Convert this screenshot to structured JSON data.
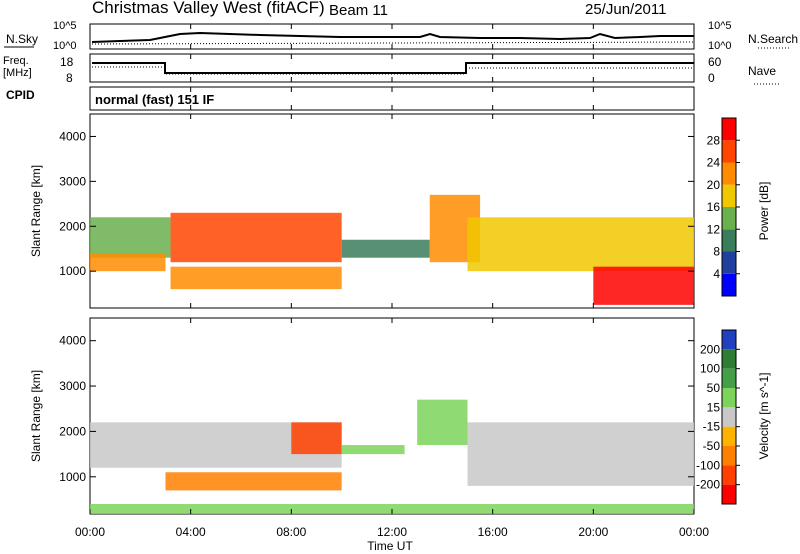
{
  "header": {
    "title": "Christmas Valley West (fitACF)",
    "beam": "Beam 11",
    "date": "25/Jun/2011"
  },
  "summary": {
    "left_label": "N.Sky",
    "right_label": "N.Search",
    "left_ticks": [
      "10^5",
      "10^0"
    ],
    "right_ticks": [
      "10^5",
      "10^0"
    ]
  },
  "freq": {
    "left_label_line1": "Freq.",
    "left_label_line2": "[MHz]",
    "right_label": "Nave",
    "left_ticks": [
      "18",
      "8"
    ],
    "right_ticks": [
      "60",
      "0"
    ],
    "cpid_label": "CPID",
    "mode_text": "normal (fast) 151 IF"
  },
  "chart_data": [
    {
      "type": "heatmap",
      "title": "",
      "xlabel": "Time UT",
      "ylabel": "Slant Range [km]",
      "x_ticks": [
        "00:00",
        "04:00",
        "08:00",
        "12:00",
        "16:00",
        "20:00",
        "00:00"
      ],
      "y_ticks": [
        "1000",
        "2000",
        "3000",
        "4000"
      ],
      "ylim": [
        180,
        4500
      ],
      "colorbar_label": "Power [dB]",
      "colorbar_ticks": [
        "4",
        "8",
        "12",
        "16",
        "20",
        "24",
        "28"
      ],
      "colorbar_colors": [
        "#0000ff",
        "#2040a0",
        "#3a7d5a",
        "#6ab04c",
        "#f0c800",
        "#ff8c00",
        "#ff4500",
        "#ff0000"
      ],
      "regions": [
        {
          "t0": 0.0,
          "t1": 3.2,
          "r0": 1300,
          "r1": 2200,
          "level": 12
        },
        {
          "t0": 0.0,
          "t1": 3.0,
          "r0": 1000,
          "r1": 1400,
          "level": 20
        },
        {
          "t0": 3.2,
          "t1": 10.0,
          "r0": 1200,
          "r1": 2300,
          "level": 26
        },
        {
          "t0": 3.2,
          "t1": 10.0,
          "r0": 600,
          "r1": 1100,
          "level": 22
        },
        {
          "t0": 10.0,
          "t1": 13.5,
          "r0": 1300,
          "r1": 1700,
          "level": 8
        },
        {
          "t0": 13.5,
          "t1": 15.5,
          "r0": 1200,
          "r1": 2700,
          "level": 20
        },
        {
          "t0": 15.0,
          "t1": 24.0,
          "r0": 1000,
          "r1": 2200,
          "level": 16
        },
        {
          "t0": 20.0,
          "t1": 24.0,
          "r0": 250,
          "r1": 1100,
          "level": 28
        }
      ]
    },
    {
      "type": "heatmap",
      "title": "",
      "xlabel": "Time UT",
      "ylabel": "Slant Range [km]",
      "x_ticks": [
        "00:00",
        "04:00",
        "08:00",
        "12:00",
        "16:00",
        "20:00",
        "00:00"
      ],
      "y_ticks": [
        "1000",
        "2000",
        "3000",
        "4000"
      ],
      "ylim": [
        180,
        4500
      ],
      "colorbar_label": "Velocity [m s^-1]",
      "colorbar_ticks": [
        "200",
        "100",
        "50",
        "15",
        "-15",
        "-50",
        "-100",
        "-200"
      ],
      "colorbar_colors": [
        "#2040c0",
        "#2e7d32",
        "#43a047",
        "#7dd35b",
        "#c8c8c8",
        "#ffb300",
        "#ff8000",
        "#ff4000",
        "#ff0000"
      ],
      "regions": [
        {
          "t0": 0.0,
          "t1": 10.0,
          "r0": 1200,
          "r1": 2200,
          "level": 0
        },
        {
          "t0": 3.0,
          "t1": 10.0,
          "r0": 700,
          "r1": 1100,
          "level": -60
        },
        {
          "t0": 8.0,
          "t1": 10.0,
          "r0": 1500,
          "r1": 2200,
          "level": -150
        },
        {
          "t0": 10.0,
          "t1": 12.5,
          "r0": 1500,
          "r1": 1700,
          "level": 40
        },
        {
          "t0": 13.0,
          "t1": 15.0,
          "r0": 1700,
          "r1": 2700,
          "level": 40
        },
        {
          "t0": 15.0,
          "t1": 24.0,
          "r0": 800,
          "r1": 2200,
          "level": 0
        },
        {
          "t0": 0.0,
          "t1": 24.0,
          "r0": 180,
          "r1": 400,
          "level": 40
        }
      ]
    }
  ]
}
